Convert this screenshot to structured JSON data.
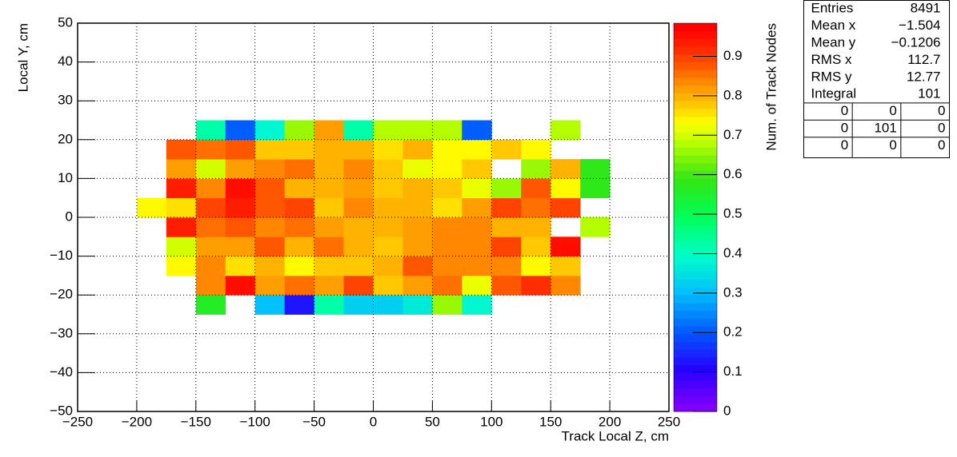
{
  "chart_data": {
    "type": "heatmap",
    "xlabel": "Track Local Z, cm",
    "ylabel": "Local Y, cm",
    "zlabel": "Num. of Track Nodes",
    "xlim": [
      -250,
      250
    ],
    "ylim": [
      -50,
      50
    ],
    "zlim": [
      0,
      0.984
    ],
    "xticks": [
      {
        "value": -250,
        "label": "−250"
      },
      {
        "value": -200,
        "label": "−200"
      },
      {
        "value": -150,
        "label": "−150"
      },
      {
        "value": -100,
        "label": "−100"
      },
      {
        "value": -50,
        "label": "−50"
      },
      0,
      50,
      100,
      150,
      200,
      250
    ],
    "yticks": [
      {
        "value": -50,
        "label": "−50"
      },
      {
        "value": -40,
        "label": "−40"
      },
      {
        "value": -30,
        "label": "−30"
      },
      {
        "value": -20,
        "label": "−20"
      },
      {
        "value": -10,
        "label": "−10"
      },
      0,
      10,
      20,
      30,
      40,
      50
    ],
    "zticks": [
      0,
      0.1,
      0.2,
      0.3,
      0.4,
      0.5,
      0.6,
      0.7,
      0.8,
      0.9
    ],
    "grid": true,
    "colormap": "rainbow",
    "xbins": [
      -200,
      -175,
      -150,
      -125,
      -100,
      -75,
      -50,
      -25,
      0,
      25,
      50,
      75,
      100,
      125,
      150,
      175,
      200
    ],
    "ybins": [
      -25,
      -20,
      -15,
      -10,
      -5,
      0,
      5,
      10,
      15,
      20,
      25
    ],
    "z": [
      [
        null,
        null,
        0.56,
        null,
        0.31,
        0.12,
        0.43,
        0.32,
        0.32,
        0.37,
        0.65,
        0.38,
        null,
        null,
        null,
        null
      ],
      [
        null,
        null,
        0.84,
        0.96,
        0.82,
        0.86,
        0.82,
        0.89,
        0.78,
        0.82,
        0.85,
        0.72,
        0.87,
        0.91,
        0.83,
        null
      ],
      [
        null,
        0.73,
        0.83,
        0.75,
        0.8,
        0.73,
        0.77,
        0.77,
        0.8,
        0.88,
        0.84,
        0.84,
        0.84,
        0.73,
        0.77,
        null
      ],
      [
        null,
        0.7,
        0.82,
        0.82,
        0.87,
        0.8,
        0.86,
        0.8,
        0.78,
        0.82,
        0.83,
        0.83,
        0.9,
        0.77,
        0.95,
        null
      ],
      [
        null,
        0.94,
        0.85,
        0.87,
        0.84,
        0.85,
        0.82,
        0.8,
        0.8,
        0.82,
        0.83,
        0.83,
        0.8,
        0.79,
        null,
        0.68
      ],
      [
        0.74,
        0.75,
        0.9,
        0.93,
        0.87,
        0.89,
        0.77,
        0.84,
        0.8,
        0.8,
        0.76,
        0.82,
        0.9,
        0.86,
        0.9,
        null
      ],
      [
        null,
        0.93,
        0.83,
        0.96,
        0.87,
        0.8,
        0.8,
        0.82,
        0.78,
        0.8,
        0.77,
        0.72,
        0.66,
        0.88,
        0.74,
        0.58
      ],
      [
        null,
        0.82,
        0.7,
        0.82,
        0.84,
        0.86,
        0.8,
        0.83,
        0.78,
        0.72,
        0.73,
        0.77,
        null,
        0.65,
        0.8,
        0.58
      ],
      [
        null,
        0.87,
        0.86,
        0.88,
        0.77,
        0.77,
        0.8,
        0.8,
        0.75,
        0.8,
        0.73,
        0.73,
        0.78,
        0.73,
        null,
        null
      ],
      [
        null,
        null,
        0.42,
        0.2,
        0.38,
        0.65,
        0.82,
        0.42,
        0.67,
        0.67,
        0.68,
        0.2,
        null,
        null,
        0.67,
        null
      ]
    ],
    "stats": {
      "rows": [
        [
          "Entries",
          "8491"
        ],
        [
          "Mean x",
          "−1.504"
        ],
        [
          "Mean y",
          "−0.1206"
        ],
        [
          "RMS x",
          "112.7"
        ],
        [
          "RMS y",
          "12.77"
        ],
        [
          "Integral",
          "101"
        ]
      ],
      "grid": [
        [
          "0",
          "0",
          "0"
        ],
        [
          "0",
          "101",
          "0"
        ],
        [
          "0",
          "0",
          "0"
        ]
      ]
    }
  }
}
